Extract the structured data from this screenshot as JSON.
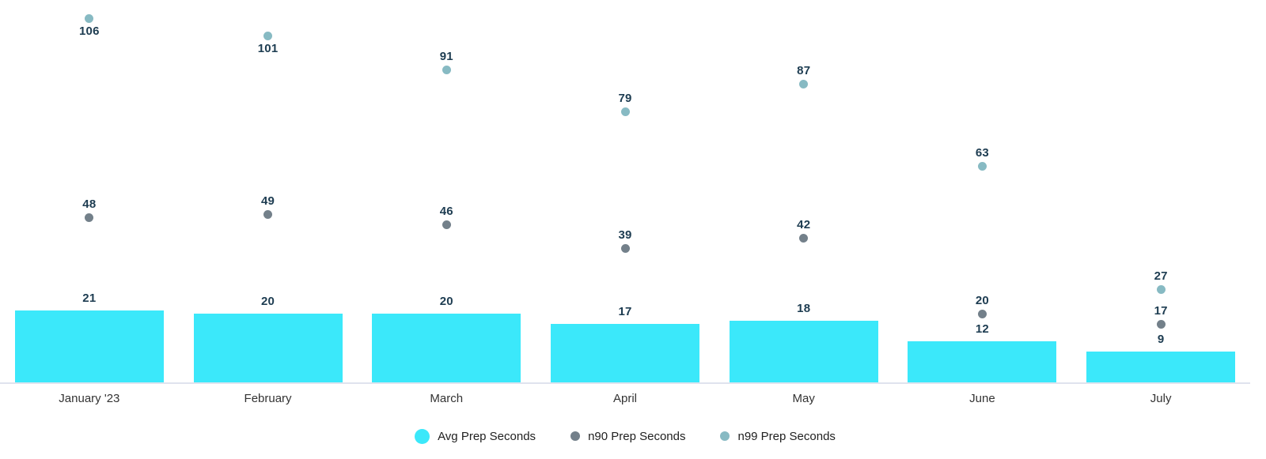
{
  "chart_data": {
    "type": "combo",
    "title": "",
    "xlabel": "",
    "ylabel": "",
    "ylim": [
      0,
      111.5
    ],
    "grid": false,
    "legend_position": "bottom-center",
    "value_labels_shown": true,
    "categories": [
      "January '23",
      "February",
      "March",
      "April",
      "May",
      "June",
      "July"
    ],
    "series": [
      {
        "name": "Avg Prep Seconds",
        "type": "bar",
        "color": "#3be8fa",
        "values": [
          21,
          20,
          20,
          17,
          18,
          12,
          9
        ]
      },
      {
        "name": "n90 Prep Seconds",
        "type": "scatter",
        "color": "#73808a",
        "values": [
          48,
          49,
          46,
          39,
          42,
          20,
          17
        ]
      },
      {
        "name": "n99 Prep Seconds",
        "type": "scatter",
        "color": "#87bac3",
        "values": [
          106,
          101,
          91,
          79,
          87,
          63,
          27
        ],
        "label_below": [
          true,
          true,
          false,
          false,
          false,
          false,
          false
        ]
      }
    ],
    "colors": {
      "value_label": "#1d3c51",
      "axis_text": "#333333",
      "axis_line": "#dfe3ee",
      "legend_text": "#212121",
      "background": "#ffffff"
    }
  }
}
